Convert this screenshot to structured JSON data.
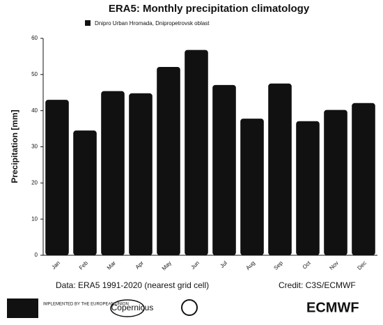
{
  "chart_data": {
    "type": "bar",
    "title": "ERA5: Monthly precipitation climatology",
    "legend_label": "Dnipro Urban Hromada, Dnipropetrovsk oblast",
    "ylabel": "Precipitation [mm]",
    "categories": [
      "Jan",
      "Feb",
      "Mar",
      "Apr",
      "May",
      "Jun",
      "Jul",
      "Aug",
      "Sep",
      "Oct",
      "Nov",
      "Dec"
    ],
    "values": [
      43,
      34.5,
      45.4,
      44.8,
      52.1,
      56.8,
      47.1,
      37.8,
      47.5,
      37.1,
      40.2,
      42.1
    ],
    "color": "#111111",
    "ylim": [
      0,
      60
    ],
    "yticks": [
      0,
      10,
      20,
      30,
      40,
      50,
      60
    ],
    "grid": false,
    "source": "Data: ERA5 1991-2020 (nearest grid cell)",
    "credit": "Credit: C3S/ECMWF",
    "logos": [
      "IMPLEMENTED BY THE EUROPEAN UNION",
      "Copernicus",
      "ECMWF"
    ]
  }
}
